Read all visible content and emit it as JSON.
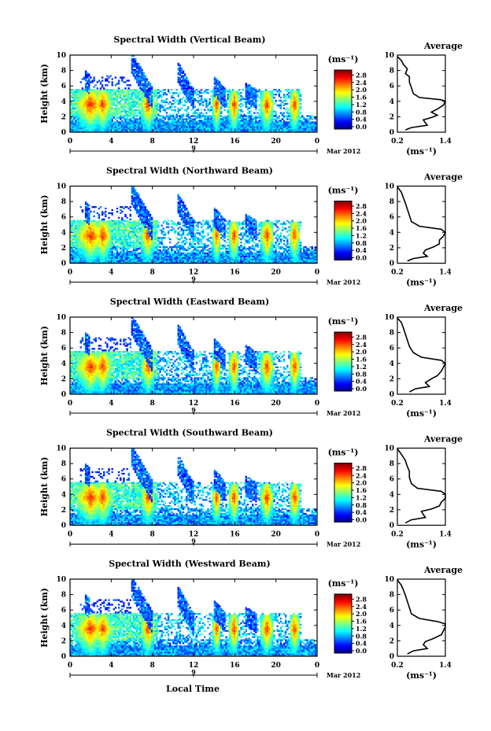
{
  "figure": {
    "x_axis_title": "Local Time",
    "date_label": "Mar 2012",
    "day_label": "9"
  },
  "chart_data": [
    {
      "type": "heatmap",
      "title": "Spectral Width (Vertical Beam)",
      "ylabel": "Height (km)",
      "xlabel": "",
      "xlim": [
        0,
        24
      ],
      "ylim": [
        0,
        10
      ],
      "xticks": [
        "0",
        "4",
        "8",
        "12",
        "16",
        "20",
        "0"
      ],
      "yticks": [
        "0",
        "2",
        "4",
        "6",
        "8",
        "10"
      ],
      "colorbar": {
        "unit": "(ms⁻¹)",
        "ticks": [
          "0.0",
          "0.4",
          "0.8",
          "1.2",
          "1.6",
          "2.0",
          "2.4",
          "2.8"
        ],
        "range": [
          0,
          3.2
        ]
      },
      "average": {
        "title": "Average",
        "xlabel": "(ms⁻¹)",
        "xticks": [
          "0.2",
          "1.4"
        ],
        "xlim": [
          0.2,
          1.4
        ],
        "ylim": [
          0,
          10
        ],
        "profile": [
          [
            0.4,
            0.3
          ],
          [
            0.55,
            0.6
          ],
          [
            0.95,
            0.9
          ],
          [
            0.9,
            1.2
          ],
          [
            0.85,
            1.6
          ],
          [
            1.05,
            1.9
          ],
          [
            1.2,
            2.2
          ],
          [
            1.05,
            2.6
          ],
          [
            1.2,
            3.0
          ],
          [
            1.35,
            3.5
          ],
          [
            1.4,
            4.0
          ],
          [
            1.3,
            4.2
          ],
          [
            0.75,
            4.5
          ],
          [
            0.6,
            5.0
          ],
          [
            0.55,
            5.8
          ],
          [
            0.5,
            6.5
          ],
          [
            0.5,
            7.2
          ],
          [
            0.4,
            7.6
          ],
          [
            0.45,
            8.2
          ],
          [
            0.35,
            8.8
          ],
          [
            0.3,
            9.3
          ],
          [
            0.2,
            9.8
          ]
        ]
      }
    },
    {
      "type": "heatmap",
      "title": "Spectral Width (Northward Beam)",
      "ylabel": "Height (km)",
      "xlabel": "",
      "xlim": [
        0,
        24
      ],
      "ylim": [
        0,
        10
      ],
      "xticks": [
        "0",
        "4",
        "8",
        "12",
        "16",
        "20",
        "0"
      ],
      "yticks": [
        "0",
        "2",
        "4",
        "6",
        "8",
        "10"
      ],
      "colorbar": {
        "unit": "(ms⁻¹)",
        "ticks": [
          "0.0",
          "0.4",
          "0.8",
          "1.2",
          "1.6",
          "2.0",
          "2.4",
          "2.8"
        ],
        "range": [
          0,
          3.2
        ]
      },
      "average": {
        "title": "Average",
        "xlabel": "(ms⁻¹)",
        "xticks": [
          "0.2",
          "1.4"
        ],
        "xlim": [
          0.2,
          1.4
        ],
        "ylim": [
          0,
          10
        ],
        "profile": [
          [
            0.45,
            0.3
          ],
          [
            0.6,
            0.6
          ],
          [
            0.95,
            0.9
          ],
          [
            0.85,
            1.3
          ],
          [
            0.9,
            1.7
          ],
          [
            1.1,
            2.1
          ],
          [
            1.25,
            2.5
          ],
          [
            1.25,
            3.0
          ],
          [
            1.35,
            3.5
          ],
          [
            1.4,
            4.0
          ],
          [
            1.3,
            4.4
          ],
          [
            0.75,
            4.8
          ],
          [
            0.55,
            5.4
          ],
          [
            0.5,
            6.2
          ],
          [
            0.45,
            7.0
          ],
          [
            0.4,
            7.8
          ],
          [
            0.35,
            8.5
          ],
          [
            0.3,
            9.2
          ],
          [
            0.2,
            9.9
          ]
        ]
      }
    },
    {
      "type": "heatmap",
      "title": "Spectral Width (Eastward Beam)",
      "ylabel": "Height (km)",
      "xlabel": "",
      "xlim": [
        0,
        24
      ],
      "ylim": [
        0,
        10
      ],
      "xticks": [
        "0",
        "4",
        "8",
        "12",
        "16",
        "20",
        "0"
      ],
      "yticks": [
        "0",
        "2",
        "4",
        "6",
        "8",
        "10"
      ],
      "colorbar": {
        "unit": "(ms⁻¹)",
        "ticks": [
          "0.0",
          "0.4",
          "0.8",
          "1.2",
          "1.6",
          "2.0",
          "2.4",
          "2.8"
        ],
        "range": [
          0,
          3.2
        ]
      },
      "average": {
        "title": "Average",
        "xlabel": "(ms⁻¹)",
        "xticks": [
          "0.2",
          "1.4"
        ],
        "xlim": [
          0.2,
          1.4
        ],
        "ylim": [
          0,
          10
        ],
        "profile": [
          [
            0.5,
            0.3
          ],
          [
            0.65,
            0.7
          ],
          [
            1.0,
            1.0
          ],
          [
            0.9,
            1.5
          ],
          [
            1.05,
            2.0
          ],
          [
            1.2,
            2.4
          ],
          [
            1.3,
            3.0
          ],
          [
            1.35,
            3.5
          ],
          [
            1.4,
            4.0
          ],
          [
            1.3,
            4.4
          ],
          [
            0.8,
            4.8
          ],
          [
            0.6,
            5.4
          ],
          [
            0.5,
            6.2
          ],
          [
            0.45,
            7.0
          ],
          [
            0.4,
            7.8
          ],
          [
            0.35,
            8.6
          ],
          [
            0.3,
            9.3
          ],
          [
            0.2,
            9.9
          ]
        ]
      }
    },
    {
      "type": "heatmap",
      "title": "Spectral Width (Southward Beam)",
      "ylabel": "Height (km)",
      "xlabel": "",
      "xlim": [
        0,
        24
      ],
      "ylim": [
        0,
        10
      ],
      "xticks": [
        "0",
        "4",
        "8",
        "12",
        "16",
        "20",
        "0"
      ],
      "yticks": [
        "0",
        "2",
        "4",
        "6",
        "8",
        "10"
      ],
      "colorbar": {
        "unit": "(ms⁻¹)",
        "ticks": [
          "0.0",
          "0.4",
          "0.8",
          "1.2",
          "1.6",
          "2.0",
          "2.4",
          "2.8"
        ],
        "range": [
          0,
          3.2
        ]
      },
      "average": {
        "title": "Average",
        "xlabel": "(ms⁻¹)",
        "xticks": [
          "0.2",
          "1.4"
        ],
        "xlim": [
          0.2,
          1.4
        ],
        "ylim": [
          0,
          10
        ],
        "profile": [
          [
            0.4,
            0.3
          ],
          [
            0.55,
            0.7
          ],
          [
            0.9,
            1.0
          ],
          [
            0.85,
            1.4
          ],
          [
            0.8,
            1.8
          ],
          [
            1.05,
            2.1
          ],
          [
            1.25,
            2.5
          ],
          [
            1.3,
            3.0
          ],
          [
            1.4,
            3.5
          ],
          [
            1.4,
            4.0
          ],
          [
            1.3,
            4.4
          ],
          [
            0.7,
            4.8
          ],
          [
            0.55,
            5.4
          ],
          [
            0.5,
            6.2
          ],
          [
            0.5,
            7.0
          ],
          [
            0.45,
            7.6
          ],
          [
            0.4,
            8.4
          ],
          [
            0.3,
            9.2
          ],
          [
            0.2,
            9.9
          ]
        ]
      }
    },
    {
      "type": "heatmap",
      "title": "Spectral Width (Westward Beam)",
      "ylabel": "Height (km)",
      "xlabel": "Local Time",
      "xlim": [
        0,
        24
      ],
      "ylim": [
        0,
        10
      ],
      "xticks": [
        "0",
        "4",
        "8",
        "12",
        "16",
        "20",
        "0"
      ],
      "yticks": [
        "0",
        "2",
        "4",
        "6",
        "8",
        "10"
      ],
      "colorbar": {
        "unit": "(ms⁻¹)",
        "ticks": [
          "0.0",
          "0.4",
          "0.8",
          "1.2",
          "1.6",
          "2.0",
          "2.4",
          "2.8"
        ],
        "range": [
          0,
          3.2
        ]
      },
      "average": {
        "title": "Average",
        "xlabel": "(ms⁻¹)",
        "xticks": [
          "0.2",
          "1.4"
        ],
        "xlim": [
          0.2,
          1.4
        ],
        "ylim": [
          0,
          10
        ],
        "profile": [
          [
            0.45,
            0.3
          ],
          [
            0.6,
            0.7
          ],
          [
            0.95,
            1.0
          ],
          [
            0.85,
            1.5
          ],
          [
            0.9,
            1.9
          ],
          [
            1.1,
            2.3
          ],
          [
            1.3,
            2.8
          ],
          [
            1.35,
            3.3
          ],
          [
            1.4,
            3.8
          ],
          [
            1.4,
            4.2
          ],
          [
            1.2,
            4.5
          ],
          [
            0.75,
            4.9
          ],
          [
            0.55,
            5.5
          ],
          [
            0.5,
            6.3
          ],
          [
            0.45,
            7.1
          ],
          [
            0.4,
            7.9
          ],
          [
            0.35,
            8.6
          ],
          [
            0.3,
            9.2
          ],
          [
            0.2,
            9.9
          ]
        ]
      }
    }
  ]
}
